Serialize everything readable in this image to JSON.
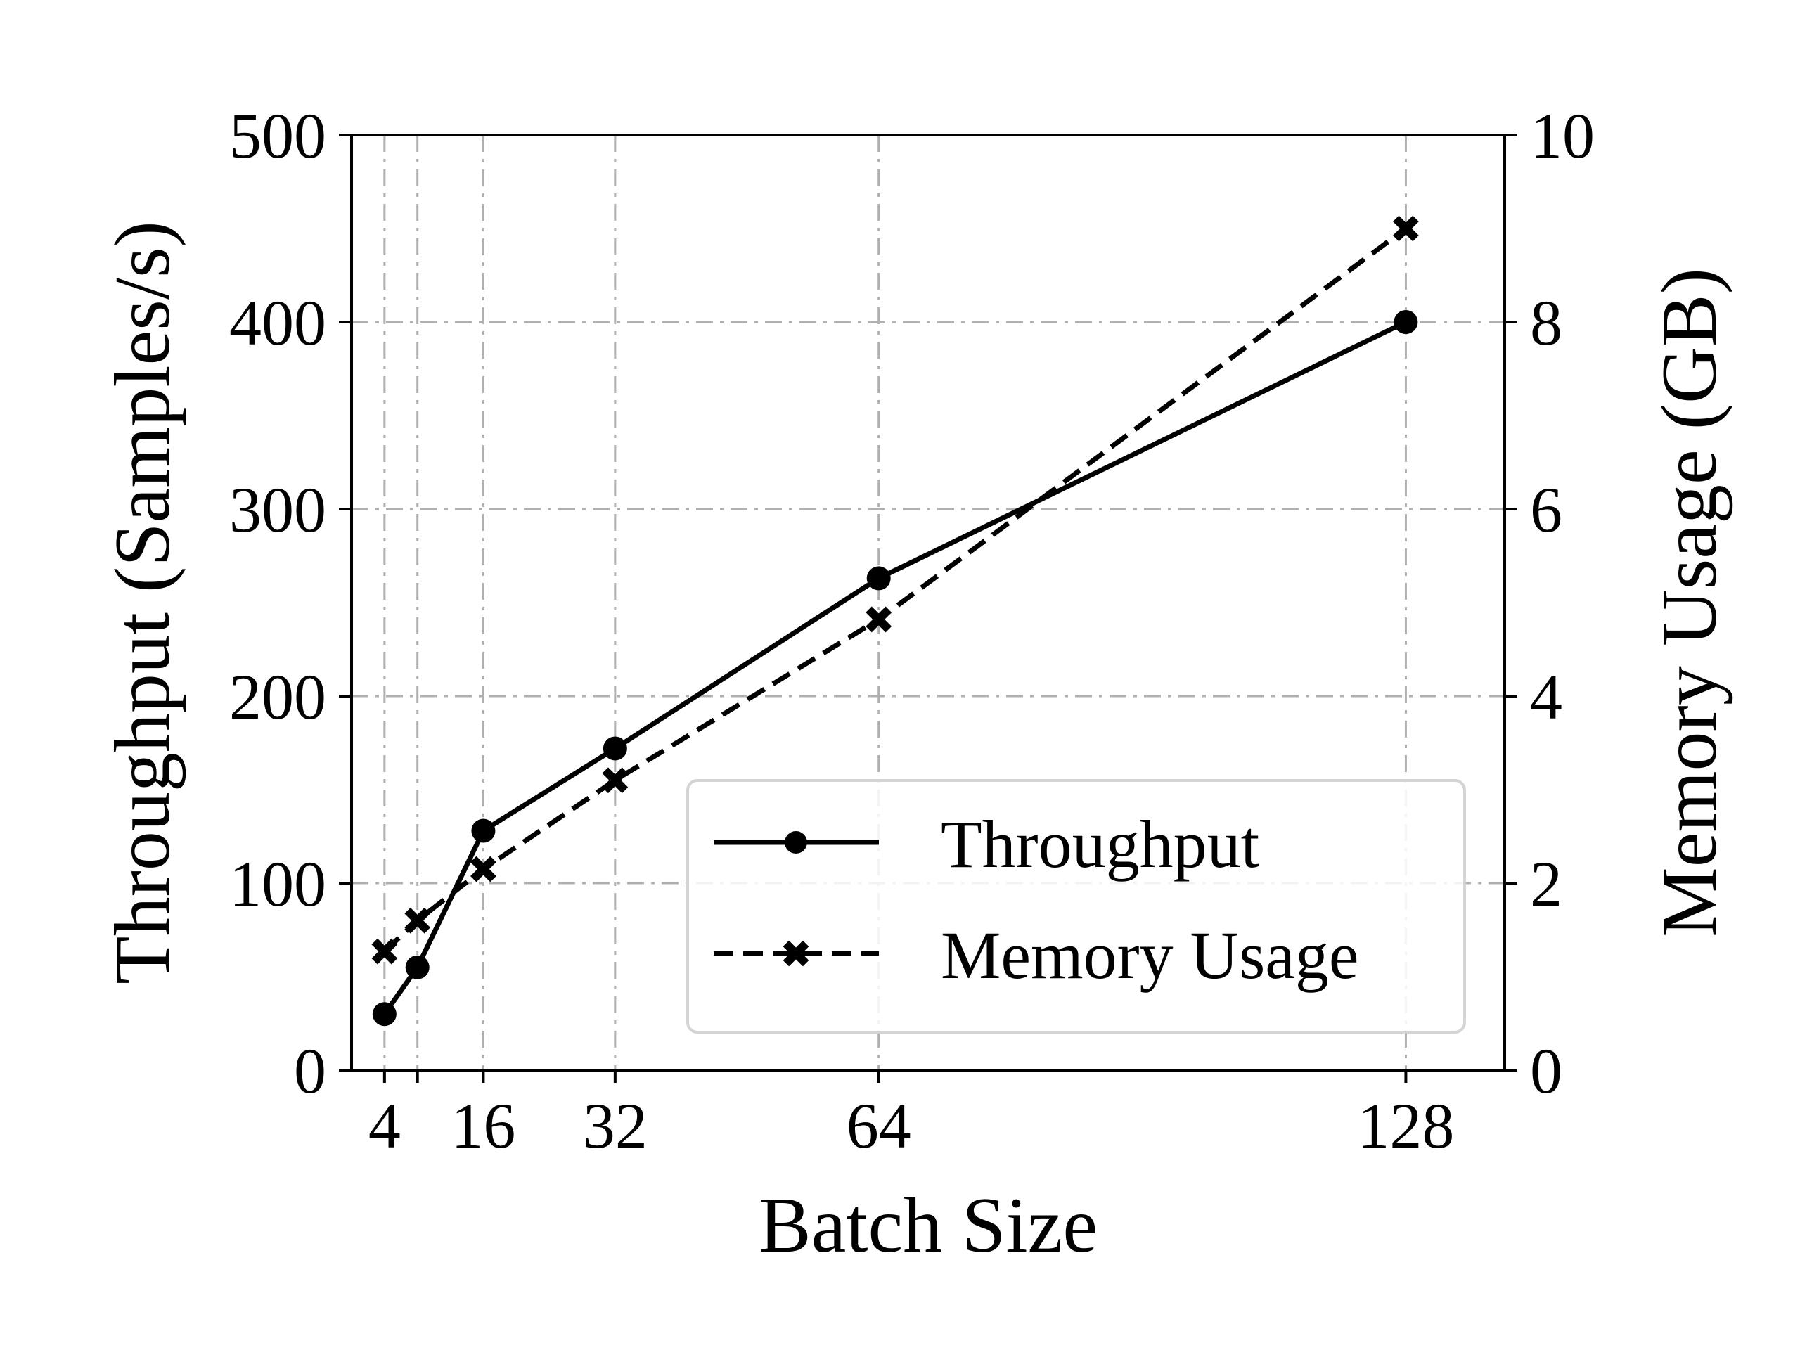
{
  "chart_data": {
    "type": "line",
    "title": "",
    "xlabel": "Batch Size",
    "ylabel": "Throughput (Samples/s)",
    "y2label": "Memory Usage (GB)",
    "x": [
      4,
      8,
      16,
      32,
      64,
      128
    ],
    "x_ticks": [
      4,
      16,
      32,
      64,
      128
    ],
    "xlim": [
      0,
      140
    ],
    "ylim": [
      0,
      500
    ],
    "y_ticks": [
      0,
      100,
      200,
      300,
      400,
      500
    ],
    "y2lim": [
      0,
      10
    ],
    "y2_ticks": [
      0,
      2,
      4,
      6,
      8,
      10
    ],
    "grid": true,
    "legend_position": "lower-right",
    "series": [
      {
        "name": "Throughput",
        "axis": "left",
        "marker": "circle",
        "line_style": "solid",
        "color": "#000000",
        "values": [
          30,
          55,
          128,
          172,
          263,
          400
        ]
      },
      {
        "name": "Memory Usage",
        "axis": "right",
        "marker": "x",
        "line_style": "dashed",
        "color": "#000000",
        "values": [
          1.27,
          1.6,
          2.15,
          3.1,
          4.82,
          9.0
        ]
      }
    ]
  }
}
